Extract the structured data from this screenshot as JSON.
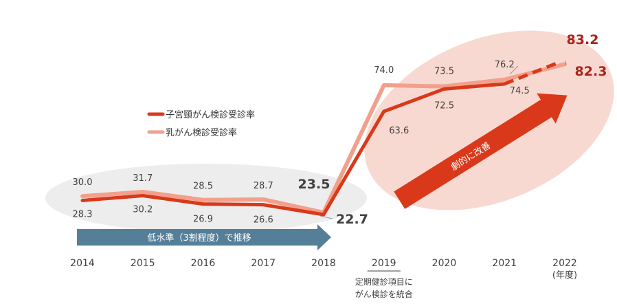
{
  "chart_data": {
    "type": "line",
    "categories": [
      "2014",
      "2015",
      "2016",
      "2017",
      "2018",
      "2019",
      "2020",
      "2021",
      "2022"
    ],
    "x_unit_label": "(年度)",
    "series": [
      {
        "name": "子宮頸がん検診受診率",
        "color": "#D9391A",
        "dashed_last": true,
        "values": [
          28.3,
          30.2,
          26.9,
          26.6,
          22.7,
          63.6,
          72.5,
          74.5,
          83.2
        ]
      },
      {
        "name": "乳がん検診受診率",
        "color": "#F2A08C",
        "dashed_last": false,
        "values": [
          30.0,
          31.7,
          28.5,
          28.7,
          23.5,
          74.0,
          73.5,
          76.2,
          82.3
        ]
      }
    ],
    "value_labels": [
      {
        "text": "30.0",
        "x": "2014",
        "y": 30.0,
        "series": "乳がん検診受診率"
      },
      {
        "text": "28.3",
        "x": "2014",
        "y": 28.3,
        "series": "子宮頸がん検診受診率"
      },
      {
        "text": "31.7",
        "x": "2015",
        "y": 31.7,
        "series": "乳がん検診受診率"
      },
      {
        "text": "30.2",
        "x": "2015",
        "y": 30.2,
        "series": "子宮頸がん検診受診率"
      },
      {
        "text": "28.5",
        "x": "2016",
        "y": 28.5,
        "series": "乳がん検診受診率"
      },
      {
        "text": "26.9",
        "x": "2016",
        "y": 26.9,
        "series": "子宮頸がん検診受診率"
      },
      {
        "text": "28.7",
        "x": "2017",
        "y": 28.7,
        "series": "乳がん検診受診率"
      },
      {
        "text": "26.6",
        "x": "2017",
        "y": 26.6,
        "series": "子宮頸がん検診受診率"
      },
      {
        "text": "23.5",
        "x": "2018",
        "y": 23.5,
        "series": "乳がん検診受診率"
      },
      {
        "text": "22.7",
        "x": "2018",
        "y": 22.7,
        "series": "子宮頸がん検診受診率"
      },
      {
        "text": "74.0",
        "x": "2019",
        "y": 74.0,
        "series": "乳がん検診受診率"
      },
      {
        "text": "63.6",
        "x": "2019",
        "y": 63.6,
        "series": "子宮頸がん検診受診率"
      },
      {
        "text": "73.5",
        "x": "2020",
        "y": 73.5,
        "series": "乳がん検診受診率"
      },
      {
        "text": "72.5",
        "x": "2020",
        "y": 72.5,
        "series": "子宮頸がん検診受診率"
      },
      {
        "text": "76.2",
        "x": "2021",
        "y": 76.2,
        "series": "乳がん検診受診率"
      },
      {
        "text": "74.5",
        "x": "2021",
        "y": 74.5,
        "series": "子宮頸がん検診受診率"
      },
      {
        "text": "83.2",
        "x": "2022",
        "y": 83.2,
        "series": "子宮頸がん検診受診率"
      },
      {
        "text": "82.3",
        "x": "2022",
        "y": 82.3,
        "series": "乳がん検診受診率"
      }
    ],
    "annotations": {
      "low_level": "低水準（3割程度）で推移",
      "improvement": "劇的に改善",
      "note_line1": "定期健診項目に",
      "note_line2": "がん検診を統合"
    },
    "ylim": [
      0,
      90
    ],
    "grid": false,
    "legend_position": "left-middle",
    "colors": {
      "accent": "#D9391A",
      "light": "#F2A08C",
      "low_arrow": "#557F99",
      "low_ellipse": "#EDEDED",
      "high_ellipse": "#F8D9D1",
      "label_dark": "#A82418",
      "label_gray": "#404040"
    }
  }
}
